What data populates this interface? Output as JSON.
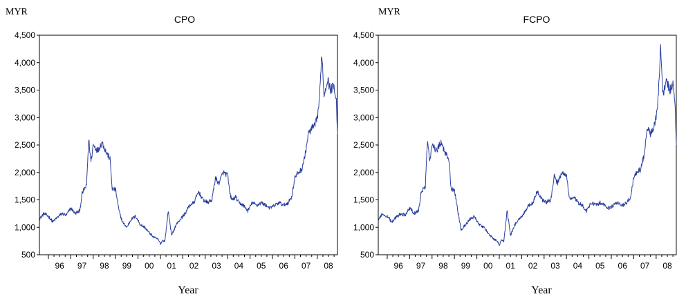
{
  "chart_data": [
    {
      "type": "line",
      "title": "CPO",
      "ylabel": "MYR",
      "xlabel": "Year",
      "ylim": [
        500,
        4500
      ],
      "yticks": [
        "500",
        "1,000",
        "1,500",
        "2,000",
        "2,500",
        "3,000",
        "3,500",
        "4,000",
        "4,500"
      ],
      "xlim": [
        1995.6,
        2008.9
      ],
      "xtick_labels": [
        "96",
        "97",
        "98",
        "99",
        "00",
        "01",
        "02",
        "03",
        "04",
        "05",
        "06",
        "07",
        "08"
      ],
      "grid": false,
      "series_color": "#2b3f9e",
      "series": [
        {
          "x": [
            1995.6,
            1995.8,
            1996.0,
            1996.2,
            1996.4,
            1996.6,
            1996.8,
            1997.0,
            1997.2,
            1997.4,
            1997.5,
            1997.6,
            1997.7,
            1997.8,
            1997.9,
            1998.0,
            1998.2,
            1998.4,
            1998.6,
            1998.75,
            1998.85,
            1999.0,
            1999.15,
            1999.3,
            1999.5,
            1999.7,
            1999.9,
            2000.1,
            2000.3,
            2000.5,
            2000.7,
            2000.9,
            2001.0,
            2001.1,
            2001.2,
            2001.35,
            2001.5,
            2001.7,
            2001.9,
            2002.1,
            2002.3,
            2002.5,
            2002.7,
            2002.9,
            2003.1,
            2003.3,
            2003.45,
            2003.6,
            2003.8,
            2004.0,
            2004.1,
            2004.2,
            2004.35,
            2004.5,
            2004.7,
            2004.9,
            2005.1,
            2005.3,
            2005.5,
            2005.7,
            2005.9,
            2006.1,
            2006.3,
            2006.5,
            2006.7,
            2006.85,
            2007.0,
            2007.15,
            2007.3,
            2007.45,
            2007.6,
            2007.75,
            2007.9,
            2008.0,
            2008.1,
            2008.2,
            2008.3,
            2008.45,
            2008.6,
            2008.75,
            2008.85,
            2008.9
          ],
          "y": [
            1150,
            1250,
            1200,
            1100,
            1180,
            1250,
            1220,
            1350,
            1250,
            1300,
            1600,
            1700,
            1750,
            2600,
            2200,
            2500,
            2400,
            2550,
            2350,
            2250,
            1700,
            1680,
            1300,
            1100,
            1000,
            1150,
            1200,
            1050,
            1000,
            900,
            820,
            780,
            700,
            760,
            750,
            1300,
            850,
            1050,
            1150,
            1250,
            1400,
            1450,
            1650,
            1500,
            1450,
            1500,
            1900,
            1800,
            2000,
            1950,
            1600,
            1500,
            1550,
            1450,
            1400,
            1300,
            1450,
            1400,
            1450,
            1400,
            1350,
            1400,
            1450,
            1400,
            1450,
            1550,
            1900,
            2000,
            2050,
            2300,
            2700,
            2800,
            2850,
            3000,
            3350,
            4200,
            3400,
            3700,
            3500,
            3600,
            3300,
            2700
          ]
        }
      ]
    },
    {
      "type": "line",
      "title": "FCPO",
      "ylabel": "MYR",
      "xlabel": "Year",
      "ylim": [
        500,
        4500
      ],
      "yticks": [
        "500",
        "1,000",
        "1,500",
        "2,000",
        "2,500",
        "3,000",
        "3,500",
        "4,000",
        "4,500"
      ],
      "xlim": [
        1995.6,
        2008.9
      ],
      "xtick_labels": [
        "96",
        "97",
        "98",
        "99",
        "00",
        "01",
        "02",
        "03",
        "04",
        "05",
        "06",
        "07",
        "08"
      ],
      "grid": false,
      "series_color": "#2b3f9e",
      "series": [
        {
          "x": [
            1995.6,
            1995.8,
            1996.0,
            1996.2,
            1996.4,
            1996.6,
            1996.8,
            1997.0,
            1997.2,
            1997.4,
            1997.5,
            1997.6,
            1997.7,
            1997.8,
            1997.9,
            1998.0,
            1998.2,
            1998.4,
            1998.6,
            1998.75,
            1998.85,
            1999.0,
            1999.15,
            1999.3,
            1999.5,
            1999.7,
            1999.9,
            2000.1,
            2000.3,
            2000.5,
            2000.7,
            2000.9,
            2001.0,
            2001.1,
            2001.2,
            2001.35,
            2001.5,
            2001.7,
            2001.9,
            2002.1,
            2002.3,
            2002.5,
            2002.7,
            2002.9,
            2003.1,
            2003.3,
            2003.45,
            2003.6,
            2003.8,
            2004.0,
            2004.1,
            2004.2,
            2004.35,
            2004.5,
            2004.7,
            2004.9,
            2005.1,
            2005.3,
            2005.5,
            2005.7,
            2005.9,
            2006.1,
            2006.3,
            2006.5,
            2006.7,
            2006.85,
            2007.0,
            2007.15,
            2007.3,
            2007.45,
            2007.6,
            2007.75,
            2007.9,
            2008.0,
            2008.1,
            2008.2,
            2008.3,
            2008.45,
            2008.6,
            2008.75,
            2008.85,
            2008.9
          ],
          "y": [
            1150,
            1250,
            1200,
            1100,
            1180,
            1250,
            1220,
            1350,
            1250,
            1300,
            1600,
            1700,
            1750,
            2600,
            2200,
            2500,
            2400,
            2550,
            2350,
            2250,
            1700,
            1680,
            1300,
            950,
            1050,
            1150,
            1200,
            1050,
            1000,
            900,
            800,
            750,
            680,
            760,
            750,
            1300,
            850,
            1050,
            1150,
            1250,
            1400,
            1450,
            1650,
            1500,
            1450,
            1500,
            1950,
            1800,
            2000,
            1950,
            1600,
            1500,
            1550,
            1450,
            1400,
            1300,
            1450,
            1400,
            1450,
            1400,
            1350,
            1400,
            1450,
            1400,
            1450,
            1550,
            1900,
            2000,
            2050,
            2300,
            2800,
            2700,
            2850,
            3000,
            3400,
            4300,
            3400,
            3700,
            3500,
            3600,
            3200,
            2500
          ]
        }
      ]
    }
  ]
}
